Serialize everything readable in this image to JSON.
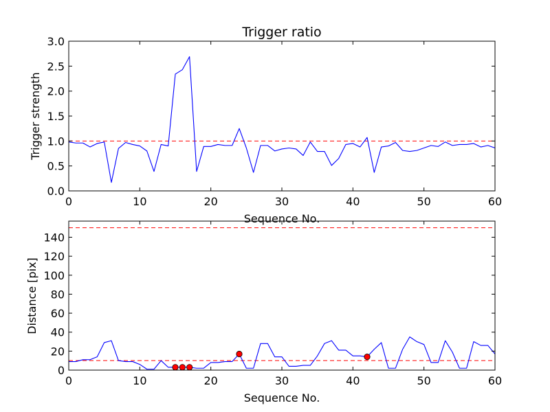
{
  "chart_data": [
    {
      "type": "line",
      "title": "Trigger ratio",
      "xlabel": "Sequence No.",
      "ylabel": "Trigger strength",
      "xlim": [
        0,
        60
      ],
      "ylim": [
        0,
        3.0
      ],
      "xticks": [
        "0",
        "10",
        "20",
        "30",
        "40",
        "50",
        "60"
      ],
      "yticks": [
        "0.0",
        "0.5",
        "1.0",
        "1.5",
        "2.0",
        "2.5",
        "3.0"
      ],
      "grid": false,
      "reference_lines": [
        {
          "y": 1.0,
          "color": "#ff0000",
          "style": "dashed"
        }
      ],
      "series": [
        {
          "color": "#0000ff",
          "x": [
            0,
            1,
            2,
            3,
            4,
            5,
            6,
            7,
            8,
            9,
            10,
            11,
            12,
            13,
            14,
            15,
            16,
            17,
            18,
            19,
            20,
            21,
            22,
            23,
            24,
            25,
            26,
            27,
            28,
            29,
            30,
            31,
            32,
            33,
            34,
            35,
            36,
            37,
            38,
            39,
            40,
            41,
            42,
            43,
            44,
            45,
            46,
            47,
            48,
            49,
            50,
            51,
            52,
            53,
            54,
            55,
            56,
            57,
            58,
            59,
            60
          ],
          "values": [
            0.98,
            0.96,
            0.96,
            0.88,
            0.95,
            0.98,
            0.17,
            0.85,
            0.97,
            0.93,
            0.9,
            0.8,
            0.39,
            0.93,
            0.9,
            2.34,
            2.43,
            2.69,
            0.39,
            0.89,
            0.89,
            0.93,
            0.91,
            0.91,
            1.25,
            0.86,
            0.37,
            0.91,
            0.91,
            0.8,
            0.84,
            0.86,
            0.84,
            0.71,
            0.98,
            0.79,
            0.79,
            0.51,
            0.65,
            0.93,
            0.95,
            0.88,
            1.07,
            0.37,
            0.88,
            0.9,
            0.97,
            0.81,
            0.79,
            0.81,
            0.86,
            0.91,
            0.89,
            0.98,
            0.91,
            0.93,
            0.93,
            0.95,
            0.88,
            0.91,
            0.86
          ]
        }
      ]
    },
    {
      "type": "line",
      "title": "",
      "xlabel": "Sequence No.",
      "ylabel": "Distance [pix]",
      "xlim": [
        0,
        60
      ],
      "ylim": [
        0,
        157
      ],
      "xticks": [
        "0",
        "10",
        "20",
        "30",
        "40",
        "50",
        "60"
      ],
      "yticks": [
        "0",
        "20",
        "40",
        "60",
        "80",
        "100",
        "120",
        "140"
      ],
      "grid": false,
      "reference_lines": [
        {
          "y": 10,
          "color": "#ff0000",
          "style": "dashed"
        },
        {
          "y": 150,
          "color": "#ff0000",
          "style": "dashed"
        }
      ],
      "series": [
        {
          "color": "#0000ff",
          "x": [
            0,
            1,
            2,
            3,
            4,
            5,
            6,
            7,
            8,
            9,
            10,
            11,
            12,
            13,
            14,
            15,
            16,
            17,
            18,
            19,
            20,
            21,
            22,
            23,
            24,
            25,
            26,
            27,
            28,
            29,
            30,
            31,
            32,
            33,
            34,
            35,
            36,
            37,
            38,
            39,
            40,
            41,
            42,
            43,
            44,
            45,
            46,
            47,
            48,
            49,
            50,
            51,
            52,
            53,
            54,
            55,
            56,
            57,
            58,
            59,
            60
          ],
          "values": [
            9,
            9,
            11,
            11,
            14,
            29,
            31,
            10,
            9,
            9,
            6,
            1,
            1,
            10,
            3,
            3,
            3,
            3,
            2,
            2,
            8,
            8,
            9,
            9,
            17,
            2,
            2,
            28,
            28,
            14,
            14,
            4,
            4,
            5,
            5,
            15,
            28,
            31,
            21,
            21,
            15,
            15,
            14,
            22,
            29,
            2,
            2,
            22,
            35,
            30,
            27,
            8,
            8,
            31,
            19,
            2,
            2,
            30,
            26,
            26,
            17
          ]
        }
      ],
      "markers": {
        "color": "#ff0000",
        "x": [
          15,
          16,
          17,
          24,
          42
        ],
        "values": [
          3,
          3,
          3,
          17,
          14
        ]
      }
    }
  ]
}
